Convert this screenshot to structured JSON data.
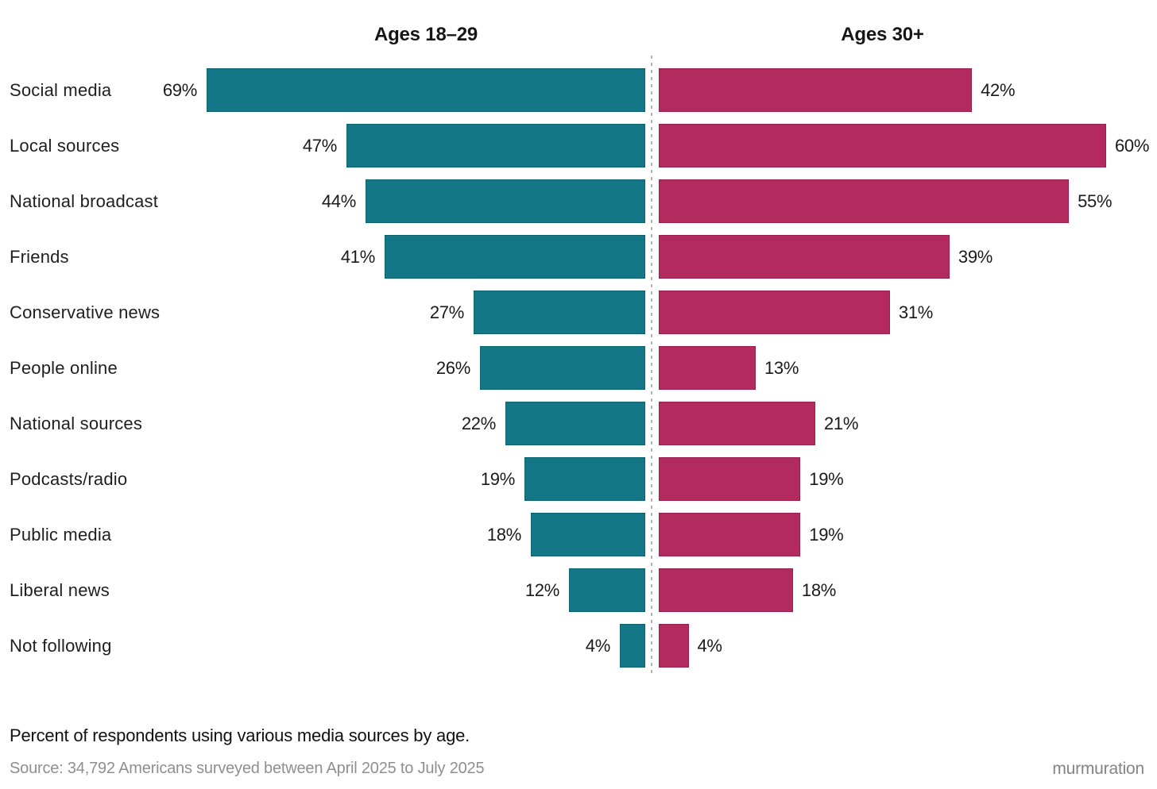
{
  "page": {
    "caption": "Percent of respondents using various media sources by age.",
    "source": "Source: 34,792 Americans surveyed between April 2025 to July 2025",
    "brand": "murmuration"
  },
  "colors": {
    "teal": "#147787",
    "crimson": "#b32a5e",
    "divider": "#b4b4b4",
    "text": "#1a1a1a",
    "muted_text": "#8f8f8f",
    "background": "#ffffff"
  },
  "chart_data": {
    "type": "bar",
    "variant": "diverging-butterfly-horizontal",
    "column_headers": [
      "Ages 18–29",
      "Ages 30+"
    ],
    "categories": [
      "Social media",
      "Local sources",
      "National broadcast",
      "Friends",
      "Conservative news",
      "People online",
      "National sources",
      "Podcasts/radio",
      "Public media",
      "Liberal news",
      "Not following"
    ],
    "series": [
      {
        "name": "Ages 18–29",
        "color": "#147787",
        "values": [
          69,
          47,
          44,
          41,
          27,
          26,
          22,
          19,
          18,
          12,
          4
        ]
      },
      {
        "name": "Ages 30+",
        "color": "#b32a5e",
        "values": [
          42,
          60,
          55,
          39,
          31,
          13,
          21,
          19,
          19,
          18,
          4
        ]
      }
    ],
    "value_suffix": "%",
    "layout_hints": {
      "left_side_scaled_to_max": 69,
      "right_side_scaled_to_max": 60,
      "center_divider": "dotted",
      "value_label_position": "outside-baseline-side"
    },
    "caption": "Percent of respondents using various media sources by age.",
    "source": "Source: 34,792 Americans surveyed between April 2025 to July 2025"
  }
}
